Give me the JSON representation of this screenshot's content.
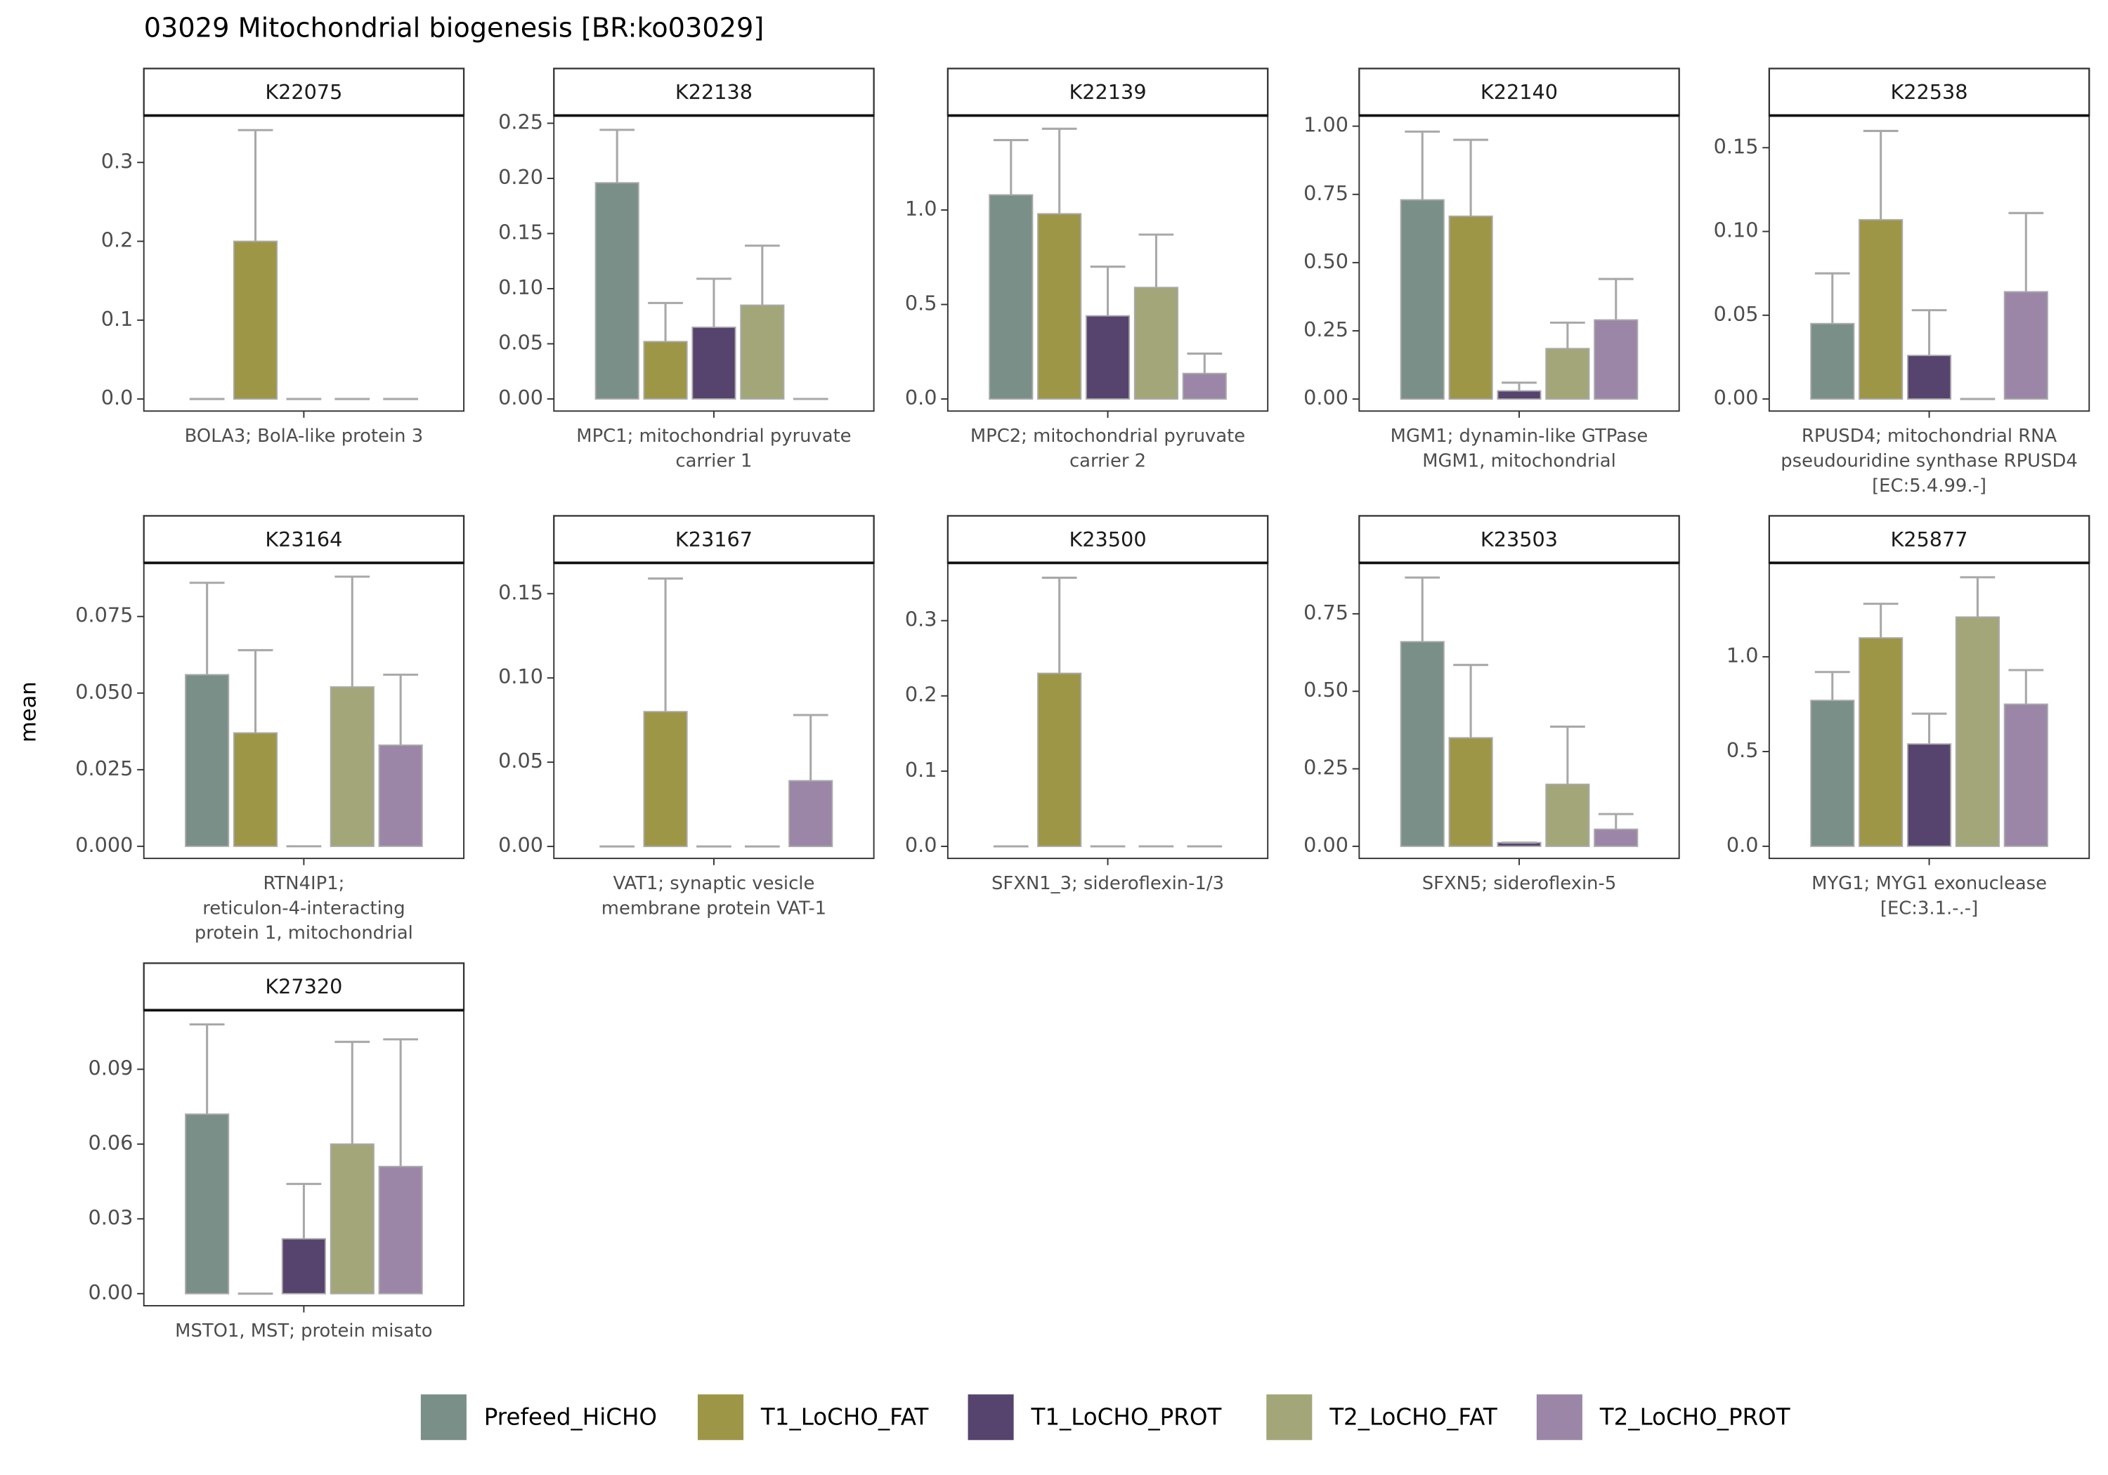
{
  "title": "03029 Mitochondrial biogenesis [BR:ko03029]",
  "y_label": "mean",
  "legend": [
    {
      "name": "Prefeed_HiCHO",
      "color": "#7a8f87"
    },
    {
      "name": "T1_LoCHO_FAT",
      "color": "#9d9647"
    },
    {
      "name": "T1_LoCHO_PROT",
      "color": "#56436e"
    },
    {
      "name": "T2_LoCHO_FAT",
      "color": "#a3a678"
    },
    {
      "name": "T2_LoCHO_PROT",
      "color": "#9b86a8"
    }
  ],
  "chart_data": [
    {
      "type": "bar",
      "title": "K22075",
      "categories": [
        [
          "BOLA3; BolA-like protein 3"
        ]
      ],
      "series": [
        {
          "values": [
            0
          ],
          "errors": [
            0
          ]
        },
        {
          "values": [
            0.2
          ],
          "errors": [
            0.141
          ]
        },
        {
          "values": [
            0
          ],
          "errors": [
            0
          ]
        },
        {
          "values": [
            0
          ],
          "errors": [
            0
          ]
        },
        {
          "values": [
            0
          ],
          "errors": [
            0
          ]
        }
      ],
      "ylim": [
        -0.0153,
        0.3595
      ],
      "yticks": [
        {
          "value": 0,
          "label": "0.0"
        },
        0.1,
        0.2,
        0.3
      ]
    },
    {
      "type": "bar",
      "title": "K22138",
      "categories": [
        [
          "MPC1; mitochondrial pyruvate",
          "carrier 1"
        ]
      ],
      "series": [
        {
          "values": [
            0.196
          ],
          "errors": [
            0.048
          ]
        },
        {
          "values": [
            0.052
          ],
          "errors": [
            0.035
          ]
        },
        {
          "values": [
            0.065
          ],
          "errors": [
            0.044
          ]
        },
        {
          "values": [
            0.085
          ],
          "errors": [
            0.054
          ]
        },
        {
          "values": [
            0
          ],
          "errors": [
            0
          ]
        }
      ],
      "ylim": [
        -0.011,
        0.257
      ],
      "yticks": [
        {
          "value": 0,
          "label": "0.00"
        },
        0.05,
        {
          "value": 0.1,
          "label": "0.10"
        },
        0.15,
        {
          "value": 0.2,
          "label": "0.20"
        },
        0.25
      ]
    },
    {
      "type": "bar",
      "title": "K22139",
      "categories": [
        [
          "MPC2; mitochondrial pyruvate",
          "carrier 2"
        ]
      ],
      "series": [
        {
          "values": [
            1.08
          ],
          "errors": [
            0.29
          ]
        },
        {
          "values": [
            0.98
          ],
          "errors": [
            0.45
          ]
        },
        {
          "values": [
            0.44
          ],
          "errors": [
            0.26
          ]
        },
        {
          "values": [
            0.59
          ],
          "errors": [
            0.28
          ]
        },
        {
          "values": [
            0.135
          ],
          "errors": [
            0.105
          ]
        }
      ],
      "ylim": [
        -0.064,
        1.5
      ],
      "yticks": [
        {
          "value": 0,
          "label": "0.0"
        },
        0.5,
        {
          "value": 1,
          "label": "1.0"
        }
      ]
    },
    {
      "type": "bar",
      "title": "K22140",
      "categories": [
        [
          "MGM1; dynamin-like GTPase",
          "MGM1, mitochondrial"
        ]
      ],
      "series": [
        {
          "values": [
            0.73
          ],
          "errors": [
            0.25
          ]
        },
        {
          "values": [
            0.67
          ],
          "errors": [
            0.28
          ]
        },
        {
          "values": [
            0.03
          ],
          "errors": [
            0.03
          ]
        },
        {
          "values": [
            0.185
          ],
          "errors": [
            0.095
          ]
        },
        {
          "values": [
            0.29
          ],
          "errors": [
            0.15
          ]
        }
      ],
      "ylim": [
        -0.044,
        1.039
      ],
      "yticks": [
        {
          "value": 0,
          "label": "0.00"
        },
        0.25,
        {
          "value": 0.5,
          "label": "0.50"
        },
        0.75,
        {
          "value": 1,
          "label": "1.00"
        }
      ]
    },
    {
      "type": "bar",
      "title": "K22538",
      "categories": [
        [
          "RPUSD4; mitochondrial RNA",
          "pseudouridine synthase RPUSD4",
          "[EC:5.4.99.-]"
        ]
      ],
      "series": [
        {
          "values": [
            0.045
          ],
          "errors": [
            0.03
          ]
        },
        {
          "values": [
            0.107
          ],
          "errors": [
            0.053
          ]
        },
        {
          "values": [
            0.026
          ],
          "errors": [
            0.027
          ]
        },
        {
          "values": [
            0
          ],
          "errors": [
            0
          ]
        },
        {
          "values": [
            0.064
          ],
          "errors": [
            0.047
          ]
        }
      ],
      "ylim": [
        -0.0072,
        0.1692
      ],
      "yticks": [
        {
          "value": 0,
          "label": "0.00"
        },
        0.05,
        {
          "value": 0.1,
          "label": "0.10"
        },
        0.15
      ]
    },
    {
      "type": "bar",
      "title": "K23164",
      "categories": [
        [
          "RTN4IP1;",
          "reticulon-4-interacting",
          "protein 1, mitochondrial"
        ]
      ],
      "series": [
        {
          "values": [
            0.056
          ],
          "errors": [
            0.03
          ]
        },
        {
          "values": [
            0.037
          ],
          "errors": [
            0.027
          ]
        },
        {
          "values": [
            0
          ],
          "errors": [
            0
          ]
        },
        {
          "values": [
            0.052
          ],
          "errors": [
            0.036
          ]
        },
        {
          "values": [
            0.033
          ],
          "errors": [
            0.023
          ]
        }
      ],
      "ylim": [
        -0.00395,
        0.0925
      ],
      "yticks": [
        {
          "value": 0,
          "label": "0.000"
        },
        0.025,
        {
          "value": 0.05,
          "label": "0.050"
        },
        0.075
      ]
    },
    {
      "type": "bar",
      "title": "K23167",
      "categories": [
        [
          "VAT1; synaptic vesicle",
          "membrane protein VAT-1"
        ]
      ],
      "series": [
        {
          "values": [
            0
          ],
          "errors": [
            0
          ]
        },
        {
          "values": [
            0.08
          ],
          "errors": [
            0.079
          ]
        },
        {
          "values": [
            0
          ],
          "errors": [
            0
          ]
        },
        {
          "values": [
            0
          ],
          "errors": [
            0
          ]
        },
        {
          "values": [
            0.039
          ],
          "errors": [
            0.039
          ]
        }
      ],
      "ylim": [
        -0.0071,
        0.1683
      ],
      "yticks": [
        {
          "value": 0,
          "label": "0.00"
        },
        0.05,
        {
          "value": 0.1,
          "label": "0.10"
        },
        0.15
      ]
    },
    {
      "type": "bar",
      "title": "K23500",
      "categories": [
        [
          "SFXN1_3; sideroflexin-1/3"
        ]
      ],
      "series": [
        {
          "values": [
            0
          ],
          "errors": [
            0
          ]
        },
        {
          "values": [
            0.23
          ],
          "errors": [
            0.127
          ]
        },
        {
          "values": [
            0
          ],
          "errors": [
            0
          ]
        },
        {
          "values": [
            0
          ],
          "errors": [
            0
          ]
        },
        {
          "values": [
            0
          ],
          "errors": [
            0
          ]
        }
      ],
      "ylim": [
        -0.016,
        0.3768
      ],
      "yticks": [
        {
          "value": 0,
          "label": "0.0"
        },
        0.1,
        0.2,
        0.3
      ]
    },
    {
      "type": "bar",
      "title": "K23503",
      "categories": [
        [
          "SFXN5; sideroflexin-5"
        ]
      ],
      "series": [
        {
          "values": [
            0.66
          ],
          "errors": [
            0.207
          ]
        },
        {
          "values": [
            0.35
          ],
          "errors": [
            0.235
          ]
        },
        {
          "values": [
            0.012
          ],
          "errors": [
            0
          ]
        },
        {
          "values": [
            0.2
          ],
          "errors": [
            0.186
          ]
        },
        {
          "values": [
            0.055
          ],
          "errors": [
            0.049
          ]
        }
      ],
      "ylim": [
        -0.039,
        0.9143
      ],
      "yticks": [
        {
          "value": 0,
          "label": "0.00"
        },
        0.25,
        {
          "value": 0.5,
          "label": "0.50"
        },
        0.75
      ]
    },
    {
      "type": "bar",
      "title": "K25877",
      "categories": [
        [
          "MYG1; MYG1 exonuclease",
          "[EC:3.1.-.-]"
        ]
      ],
      "series": [
        {
          "values": [
            0.77
          ],
          "errors": [
            0.15
          ]
        },
        {
          "values": [
            1.1
          ],
          "errors": [
            0.18
          ]
        },
        {
          "values": [
            0.54
          ],
          "errors": [
            0.16
          ]
        },
        {
          "values": [
            1.21
          ],
          "errors": [
            0.21
          ]
        },
        {
          "values": [
            0.75
          ],
          "errors": [
            0.18
          ]
        }
      ],
      "ylim": [
        -0.064,
        1.496
      ],
      "yticks": [
        {
          "value": 0,
          "label": "0.0"
        },
        0.5,
        {
          "value": 1,
          "label": "1.0"
        }
      ]
    },
    {
      "type": "bar",
      "title": "K27320",
      "categories": [
        [
          "MSTO1, MST; protein misato"
        ]
      ],
      "series": [
        {
          "values": [
            0.072
          ],
          "errors": [
            0.036
          ]
        },
        {
          "values": [
            0
          ],
          "errors": [
            0
          ]
        },
        {
          "values": [
            0.022
          ],
          "errors": [
            0.022
          ]
        },
        {
          "values": [
            0.06
          ],
          "errors": [
            0.041
          ]
        },
        {
          "values": [
            0.051
          ],
          "errors": [
            0.051
          ]
        }
      ],
      "ylim": [
        -0.00485,
        0.1137
      ],
      "yticks": [
        {
          "value": 0,
          "label": "0.00"
        },
        0.03,
        0.06,
        0.09
      ]
    }
  ]
}
